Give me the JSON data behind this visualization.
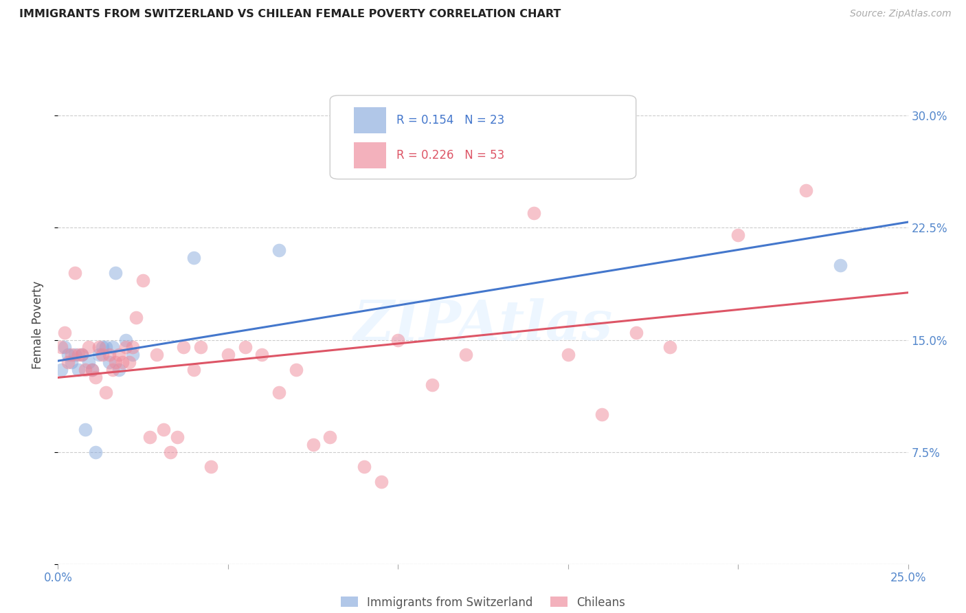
{
  "title": "IMMIGRANTS FROM SWITZERLAND VS CHILEAN FEMALE POVERTY CORRELATION CHART",
  "source": "Source: ZipAtlas.com",
  "ylabel": "Female Poverty",
  "xlim": [
    0.0,
    0.25
  ],
  "ylim": [
    0.0,
    0.32
  ],
  "ytick_vals": [
    0.0,
    0.075,
    0.15,
    0.225,
    0.3
  ],
  "ytick_labels_right": [
    "",
    "7.5%",
    "15.0%",
    "22.5%",
    "30.0%"
  ],
  "xtick_vals": [
    0.0,
    0.05,
    0.1,
    0.15,
    0.2,
    0.25
  ],
  "xtick_labels": [
    "0.0%",
    "",
    "",
    "",
    "",
    "25.0%"
  ],
  "legend1_label": "Immigrants from Switzerland",
  "legend2_label": "Chileans",
  "r1": 0.154,
  "n1": 23,
  "r2": 0.226,
  "n2": 53,
  "blue_color": "#88AADD",
  "pink_color": "#EE8899",
  "blue_line_color": "#4477CC",
  "pink_line_color": "#DD5566",
  "blue_scatter_x": [
    0.001,
    0.002,
    0.003,
    0.004,
    0.005,
    0.006,
    0.007,
    0.008,
    0.009,
    0.01,
    0.011,
    0.012,
    0.013,
    0.014,
    0.015,
    0.016,
    0.017,
    0.018,
    0.02,
    0.022,
    0.04,
    0.065,
    0.23
  ],
  "blue_scatter_y": [
    0.13,
    0.145,
    0.14,
    0.135,
    0.14,
    0.13,
    0.14,
    0.09,
    0.135,
    0.13,
    0.075,
    0.14,
    0.145,
    0.145,
    0.135,
    0.145,
    0.195,
    0.13,
    0.15,
    0.14,
    0.205,
    0.21,
    0.2
  ],
  "pink_scatter_x": [
    0.001,
    0.002,
    0.003,
    0.004,
    0.005,
    0.006,
    0.007,
    0.008,
    0.009,
    0.01,
    0.011,
    0.012,
    0.013,
    0.014,
    0.015,
    0.016,
    0.017,
    0.018,
    0.019,
    0.02,
    0.021,
    0.022,
    0.023,
    0.025,
    0.027,
    0.029,
    0.031,
    0.033,
    0.035,
    0.037,
    0.04,
    0.042,
    0.045,
    0.05,
    0.055,
    0.06,
    0.065,
    0.07,
    0.075,
    0.08,
    0.09,
    0.095,
    0.1,
    0.11,
    0.12,
    0.13,
    0.14,
    0.15,
    0.16,
    0.17,
    0.18,
    0.2,
    0.22
  ],
  "pink_scatter_y": [
    0.145,
    0.155,
    0.135,
    0.14,
    0.195,
    0.14,
    0.14,
    0.13,
    0.145,
    0.13,
    0.125,
    0.145,
    0.14,
    0.115,
    0.14,
    0.13,
    0.135,
    0.14,
    0.135,
    0.145,
    0.135,
    0.145,
    0.165,
    0.19,
    0.085,
    0.14,
    0.09,
    0.075,
    0.085,
    0.145,
    0.13,
    0.145,
    0.065,
    0.14,
    0.145,
    0.14,
    0.115,
    0.13,
    0.08,
    0.085,
    0.065,
    0.055,
    0.15,
    0.12,
    0.14,
    0.27,
    0.235,
    0.14,
    0.1,
    0.155,
    0.145,
    0.22,
    0.25
  ]
}
